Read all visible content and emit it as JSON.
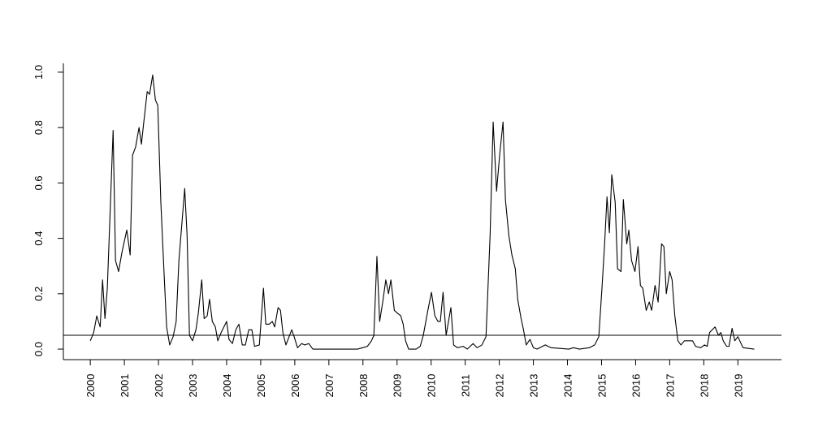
{
  "chart_data": {
    "type": "line",
    "color": "#000000",
    "x": [
      2000.0,
      2000.1,
      2000.19,
      2000.29,
      2000.36,
      2000.43,
      2000.5,
      2000.67,
      2000.74,
      2000.83,
      2000.93,
      2001.07,
      2001.17,
      2001.24,
      2001.33,
      2001.43,
      2001.5,
      2001.57,
      2001.67,
      2001.74,
      2001.83,
      2001.91,
      2001.98,
      2002.07,
      2002.17,
      2002.24,
      2002.33,
      2002.43,
      2002.52,
      2002.6,
      2002.77,
      2002.84,
      2002.91,
      2003.0,
      2003.1,
      2003.17,
      2003.27,
      2003.34,
      2003.43,
      2003.5,
      2003.58,
      2003.67,
      2003.74,
      2003.84,
      2004.0,
      2004.07,
      2004.17,
      2004.27,
      2004.36,
      2004.46,
      2004.55,
      2004.65,
      2004.74,
      2004.82,
      2004.96,
      2005.08,
      2005.15,
      2005.25,
      2005.34,
      2005.41,
      2005.51,
      2005.58,
      2005.65,
      2005.74,
      2005.91,
      2005.98,
      2006.08,
      2006.2,
      2006.29,
      2006.41,
      2006.53,
      2007.84,
      2007.99,
      2008.13,
      2008.25,
      2008.32,
      2008.41,
      2008.49,
      2008.58,
      2008.67,
      2008.75,
      2008.82,
      2008.92,
      2009.01,
      2009.11,
      2009.18,
      2009.25,
      2009.34,
      2009.56,
      2009.68,
      2009.77,
      2009.92,
      2010.01,
      2010.11,
      2010.2,
      2010.27,
      2010.35,
      2010.44,
      2010.58,
      2010.66,
      2010.77,
      2010.94,
      2011.06,
      2011.23,
      2011.35,
      2011.49,
      2011.61,
      2011.73,
      2011.82,
      2011.92,
      2012.01,
      2012.11,
      2012.18,
      2012.28,
      2012.37,
      2012.47,
      2012.54,
      2012.64,
      2012.71,
      2012.79,
      2012.9,
      2013.0,
      2013.11,
      2013.35,
      2013.52,
      2014.04,
      2014.18,
      2014.35,
      2014.64,
      2014.8,
      2014.92,
      2015.02,
      2015.09,
      2015.16,
      2015.23,
      2015.3,
      2015.4,
      2015.47,
      2015.57,
      2015.64,
      2015.74,
      2015.8,
      2015.88,
      2015.98,
      2016.07,
      2016.14,
      2016.21,
      2016.31,
      2016.4,
      2016.47,
      2016.57,
      2016.66,
      2016.76,
      2016.83,
      2016.9,
      2017.0,
      2017.07,
      2017.15,
      2017.24,
      2017.33,
      2017.43,
      2017.67,
      2017.76,
      2017.91,
      2018.02,
      2018.1,
      2018.17,
      2018.33,
      2018.43,
      2018.5,
      2018.57,
      2018.67,
      2018.74,
      2018.83,
      2018.91,
      2019.0,
      2019.15,
      2019.48
    ],
    "values": [
      0.03,
      0.06,
      0.12,
      0.08,
      0.25,
      0.11,
      0.22,
      0.79,
      0.32,
      0.28,
      0.35,
      0.43,
      0.34,
      0.7,
      0.73,
      0.8,
      0.74,
      0.82,
      0.93,
      0.92,
      0.99,
      0.9,
      0.88,
      0.53,
      0.26,
      0.08,
      0.015,
      0.045,
      0.1,
      0.32,
      0.58,
      0.41,
      0.05,
      0.03,
      0.07,
      0.13,
      0.25,
      0.11,
      0.12,
      0.18,
      0.1,
      0.08,
      0.03,
      0.06,
      0.1,
      0.035,
      0.02,
      0.07,
      0.09,
      0.015,
      0.015,
      0.07,
      0.07,
      0.01,
      0.015,
      0.22,
      0.09,
      0.09,
      0.1,
      0.08,
      0.15,
      0.14,
      0.06,
      0.015,
      0.07,
      0.045,
      0.005,
      0.02,
      0.015,
      0.02,
      0.0,
      0.0,
      0.005,
      0.01,
      0.03,
      0.05,
      0.335,
      0.1,
      0.17,
      0.25,
      0.2,
      0.25,
      0.14,
      0.13,
      0.12,
      0.09,
      0.03,
      0.0,
      0.0,
      0.01,
      0.05,
      0.15,
      0.205,
      0.12,
      0.1,
      0.1,
      0.205,
      0.05,
      0.15,
      0.015,
      0.005,
      0.01,
      0.0,
      0.02,
      0.005,
      0.015,
      0.045,
      0.41,
      0.82,
      0.57,
      0.7,
      0.82,
      0.54,
      0.41,
      0.34,
      0.29,
      0.18,
      0.11,
      0.07,
      0.015,
      0.035,
      0.005,
      0.0,
      0.015,
      0.005,
      0.0,
      0.005,
      0.0,
      0.005,
      0.015,
      0.045,
      0.235,
      0.38,
      0.55,
      0.42,
      0.63,
      0.53,
      0.29,
      0.28,
      0.54,
      0.38,
      0.43,
      0.32,
      0.28,
      0.37,
      0.23,
      0.22,
      0.14,
      0.17,
      0.14,
      0.23,
      0.17,
      0.38,
      0.37,
      0.2,
      0.28,
      0.25,
      0.12,
      0.03,
      0.015,
      0.03,
      0.03,
      0.01,
      0.005,
      0.015,
      0.01,
      0.06,
      0.08,
      0.05,
      0.06,
      0.03,
      0.01,
      0.01,
      0.075,
      0.03,
      0.045,
      0.005,
      0.0
    ],
    "hline": 0.05,
    "xlim": [
      1999.21,
      2020.28
    ],
    "ylim": [
      -0.038,
      1.032
    ],
    "xticks": [
      2000,
      2001,
      2002,
      2003,
      2004,
      2005,
      2006,
      2007,
      2008,
      2009,
      2010,
      2011,
      2012,
      2013,
      2014,
      2015,
      2016,
      2017,
      2018,
      2019
    ],
    "yticks": [
      {
        "value": 0,
        "label": "0.0"
      },
      0.2,
      0.4,
      0.6,
      0.8,
      {
        "value": 1,
        "label": "1.0"
      }
    ]
  }
}
